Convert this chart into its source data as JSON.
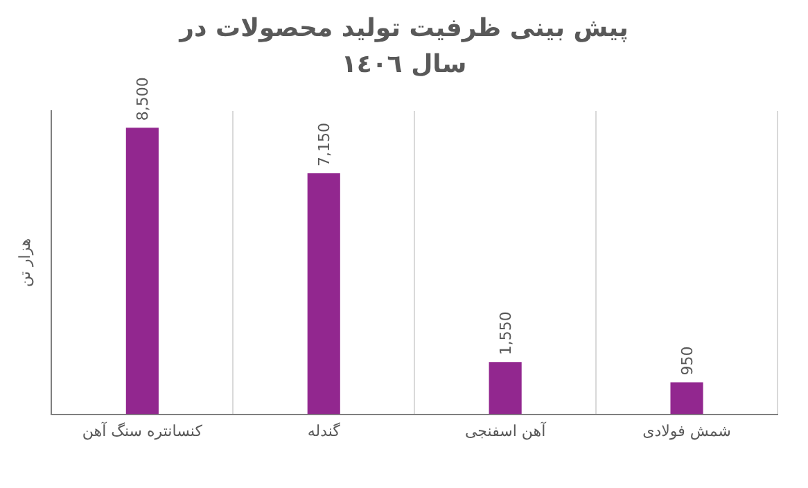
{
  "chart_data": {
    "type": "bar",
    "title": "پیش بینی ظرفیت تولید محصولات در سال ١٤٠٦",
    "ylabel": "هزار تن",
    "categories": [
      "کنسانتره سنگ آهن",
      "گندله",
      "آهن اسفنجی",
      "شمش فولادی"
    ],
    "values": [
      8500,
      7150,
      1550,
      950
    ],
    "color": "#92278f",
    "value_labels": [
      "8,500",
      "7,150",
      "1,550",
      "950"
    ],
    "grid": "x",
    "legend": false
  }
}
